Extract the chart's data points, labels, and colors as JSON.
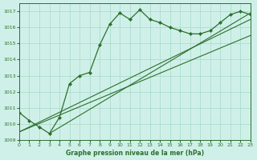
{
  "title": "Graphe pression niveau de la mer (hPa)",
  "bg_color": "#cff0e8",
  "line_color": "#2d6e2d",
  "grid_color": "#a8d8c8",
  "ylim": [
    1009,
    1017.5
  ],
  "xlim": [
    0,
    23
  ],
  "yticks": [
    1009,
    1010,
    1011,
    1012,
    1013,
    1014,
    1015,
    1016,
    1017
  ],
  "xticks": [
    0,
    1,
    2,
    3,
    4,
    5,
    6,
    7,
    8,
    9,
    10,
    11,
    12,
    13,
    14,
    15,
    16,
    17,
    18,
    19,
    20,
    21,
    22,
    23
  ],
  "main_line_x": [
    0,
    1,
    2,
    3,
    4,
    5,
    6,
    7,
    8,
    9,
    10,
    11,
    12,
    13,
    14,
    15,
    16,
    17,
    18,
    19,
    20,
    21,
    22,
    23
  ],
  "main_line_y": [
    1010.7,
    1010.2,
    1009.8,
    1009.4,
    1010.4,
    1012.5,
    1013.0,
    1013.2,
    1014.9,
    1016.2,
    1016.9,
    1016.5,
    1017.1,
    1016.5,
    1016.3,
    1016.0,
    1015.8,
    1015.6,
    1015.6,
    1015.8,
    1016.3,
    1016.8,
    1017.0,
    1016.8
  ],
  "trend_line1_x": [
    0,
    23
  ],
  "trend_line1_y": [
    1009.5,
    1016.5
  ],
  "trend_line2_x": [
    0,
    23
  ],
  "trend_line2_y": [
    1009.5,
    1015.5
  ],
  "trend_line3_x": [
    3,
    23
  ],
  "trend_line3_y": [
    1009.4,
    1016.9
  ]
}
